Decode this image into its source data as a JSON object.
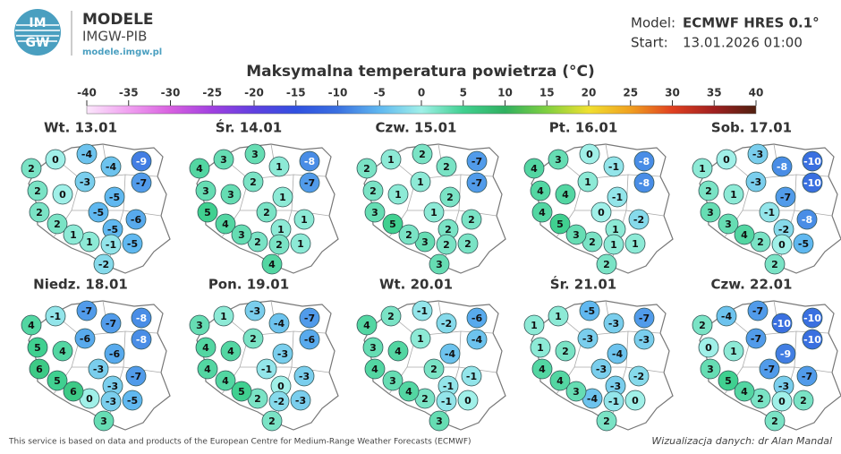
{
  "header": {
    "logo": [
      "IM",
      "GW"
    ],
    "brand": "MODELE",
    "org": "IMGW-PIB",
    "url": "modele.imgw.pl",
    "model_label": "Model:",
    "model": "ECMWF HRES 0.1°",
    "start_label": "Start:",
    "start": "13.01.2026 01:00",
    "title": "Maksymalna temperatura powietrza (°C)"
  },
  "colorbar": {
    "ticks": [
      -40,
      -35,
      -30,
      -25,
      -20,
      -15,
      -10,
      -5,
      0,
      5,
      10,
      15,
      20,
      25,
      30,
      35,
      40
    ],
    "colors": [
      "#fbe6fb",
      "#f0a0f0",
      "#d860e0",
      "#a040e0",
      "#6040e0",
      "#3050e0",
      "#3a70e0",
      "#60b8f0",
      "#a0f0e8",
      "#40d090",
      "#30b060",
      "#80d040",
      "#f0e030",
      "#f0a020",
      "#e04020",
      "#a02020",
      "#502010"
    ]
  },
  "maps": [
    {
      "title": "Wt. 13.01",
      "values": [
        0,
        -4,
        -9,
        2,
        -4,
        -3,
        -7,
        2,
        0,
        -5,
        2,
        -5,
        -6,
        2,
        -5,
        1,
        -1,
        -5,
        -2,
        1
      ]
    },
    {
      "title": "Śr. 14.01",
      "values": [
        3,
        3,
        -8,
        4,
        1,
        2,
        -7,
        3,
        3,
        1,
        5,
        2,
        1,
        4,
        1,
        2,
        2,
        1,
        4,
        3
      ]
    },
    {
      "title": "Czw. 15.01",
      "values": [
        1,
        2,
        -7,
        2,
        2,
        1,
        -7,
        2,
        1,
        2,
        3,
        1,
        2,
        5,
        2,
        3,
        2,
        2,
        3,
        2
      ]
    },
    {
      "title": "Pt. 16.01",
      "values": [
        3,
        0,
        -8,
        4,
        -1,
        1,
        -8,
        4,
        4,
        -1,
        4,
        0,
        -2,
        5,
        1,
        2,
        1,
        1,
        2,
        3
      ]
    },
    {
      "title": "Sob. 17.01",
      "values": [
        0,
        -3,
        -10,
        1,
        -8,
        -3,
        -10,
        2,
        1,
        -7,
        3,
        -1,
        -8,
        3,
        -2,
        2,
        0,
        -5,
        2,
        4
      ]
    },
    {
      "title": "Niedz. 18.01",
      "values": [
        -1,
        -7,
        -8,
        4,
        -7,
        -6,
        -8,
        5,
        4,
        -6,
        6,
        -3,
        -7,
        5,
        -3,
        0,
        -3,
        -5,
        3,
        6
      ]
    },
    {
      "title": "Pon. 19.01",
      "values": [
        1,
        -3,
        -7,
        3,
        -4,
        2,
        -6,
        4,
        4,
        -3,
        4,
        -1,
        -3,
        4,
        0,
        2,
        -2,
        -3,
        2,
        5
      ]
    },
    {
      "title": "Wt. 20.01",
      "values": [
        2,
        -1,
        -6,
        4,
        -2,
        1,
        -4,
        3,
        4,
        -4,
        4,
        2,
        -1,
        3,
        -1,
        2,
        -1,
        0,
        3,
        4
      ]
    },
    {
      "title": "Śr. 21.01",
      "values": [
        1,
        -5,
        -7,
        1,
        -3,
        -3,
        -3,
        1,
        2,
        -4,
        4,
        -3,
        -2,
        4,
        -3,
        -4,
        -1,
        0,
        2,
        3
      ]
    },
    {
      "title": "Czw. 22.01",
      "values": [
        -4,
        -7,
        -10,
        2,
        -10,
        -7,
        -10,
        0,
        1,
        -9,
        3,
        -7,
        -7,
        5,
        -3,
        2,
        0,
        2,
        2,
        4
      ]
    }
  ],
  "footer": {
    "source": "This service is based on data and products of the European Centre for Medium-Range Weather Forecasts (ECMWF)",
    "credit": "Wizualizacja danych: dr Alan Mandal"
  }
}
